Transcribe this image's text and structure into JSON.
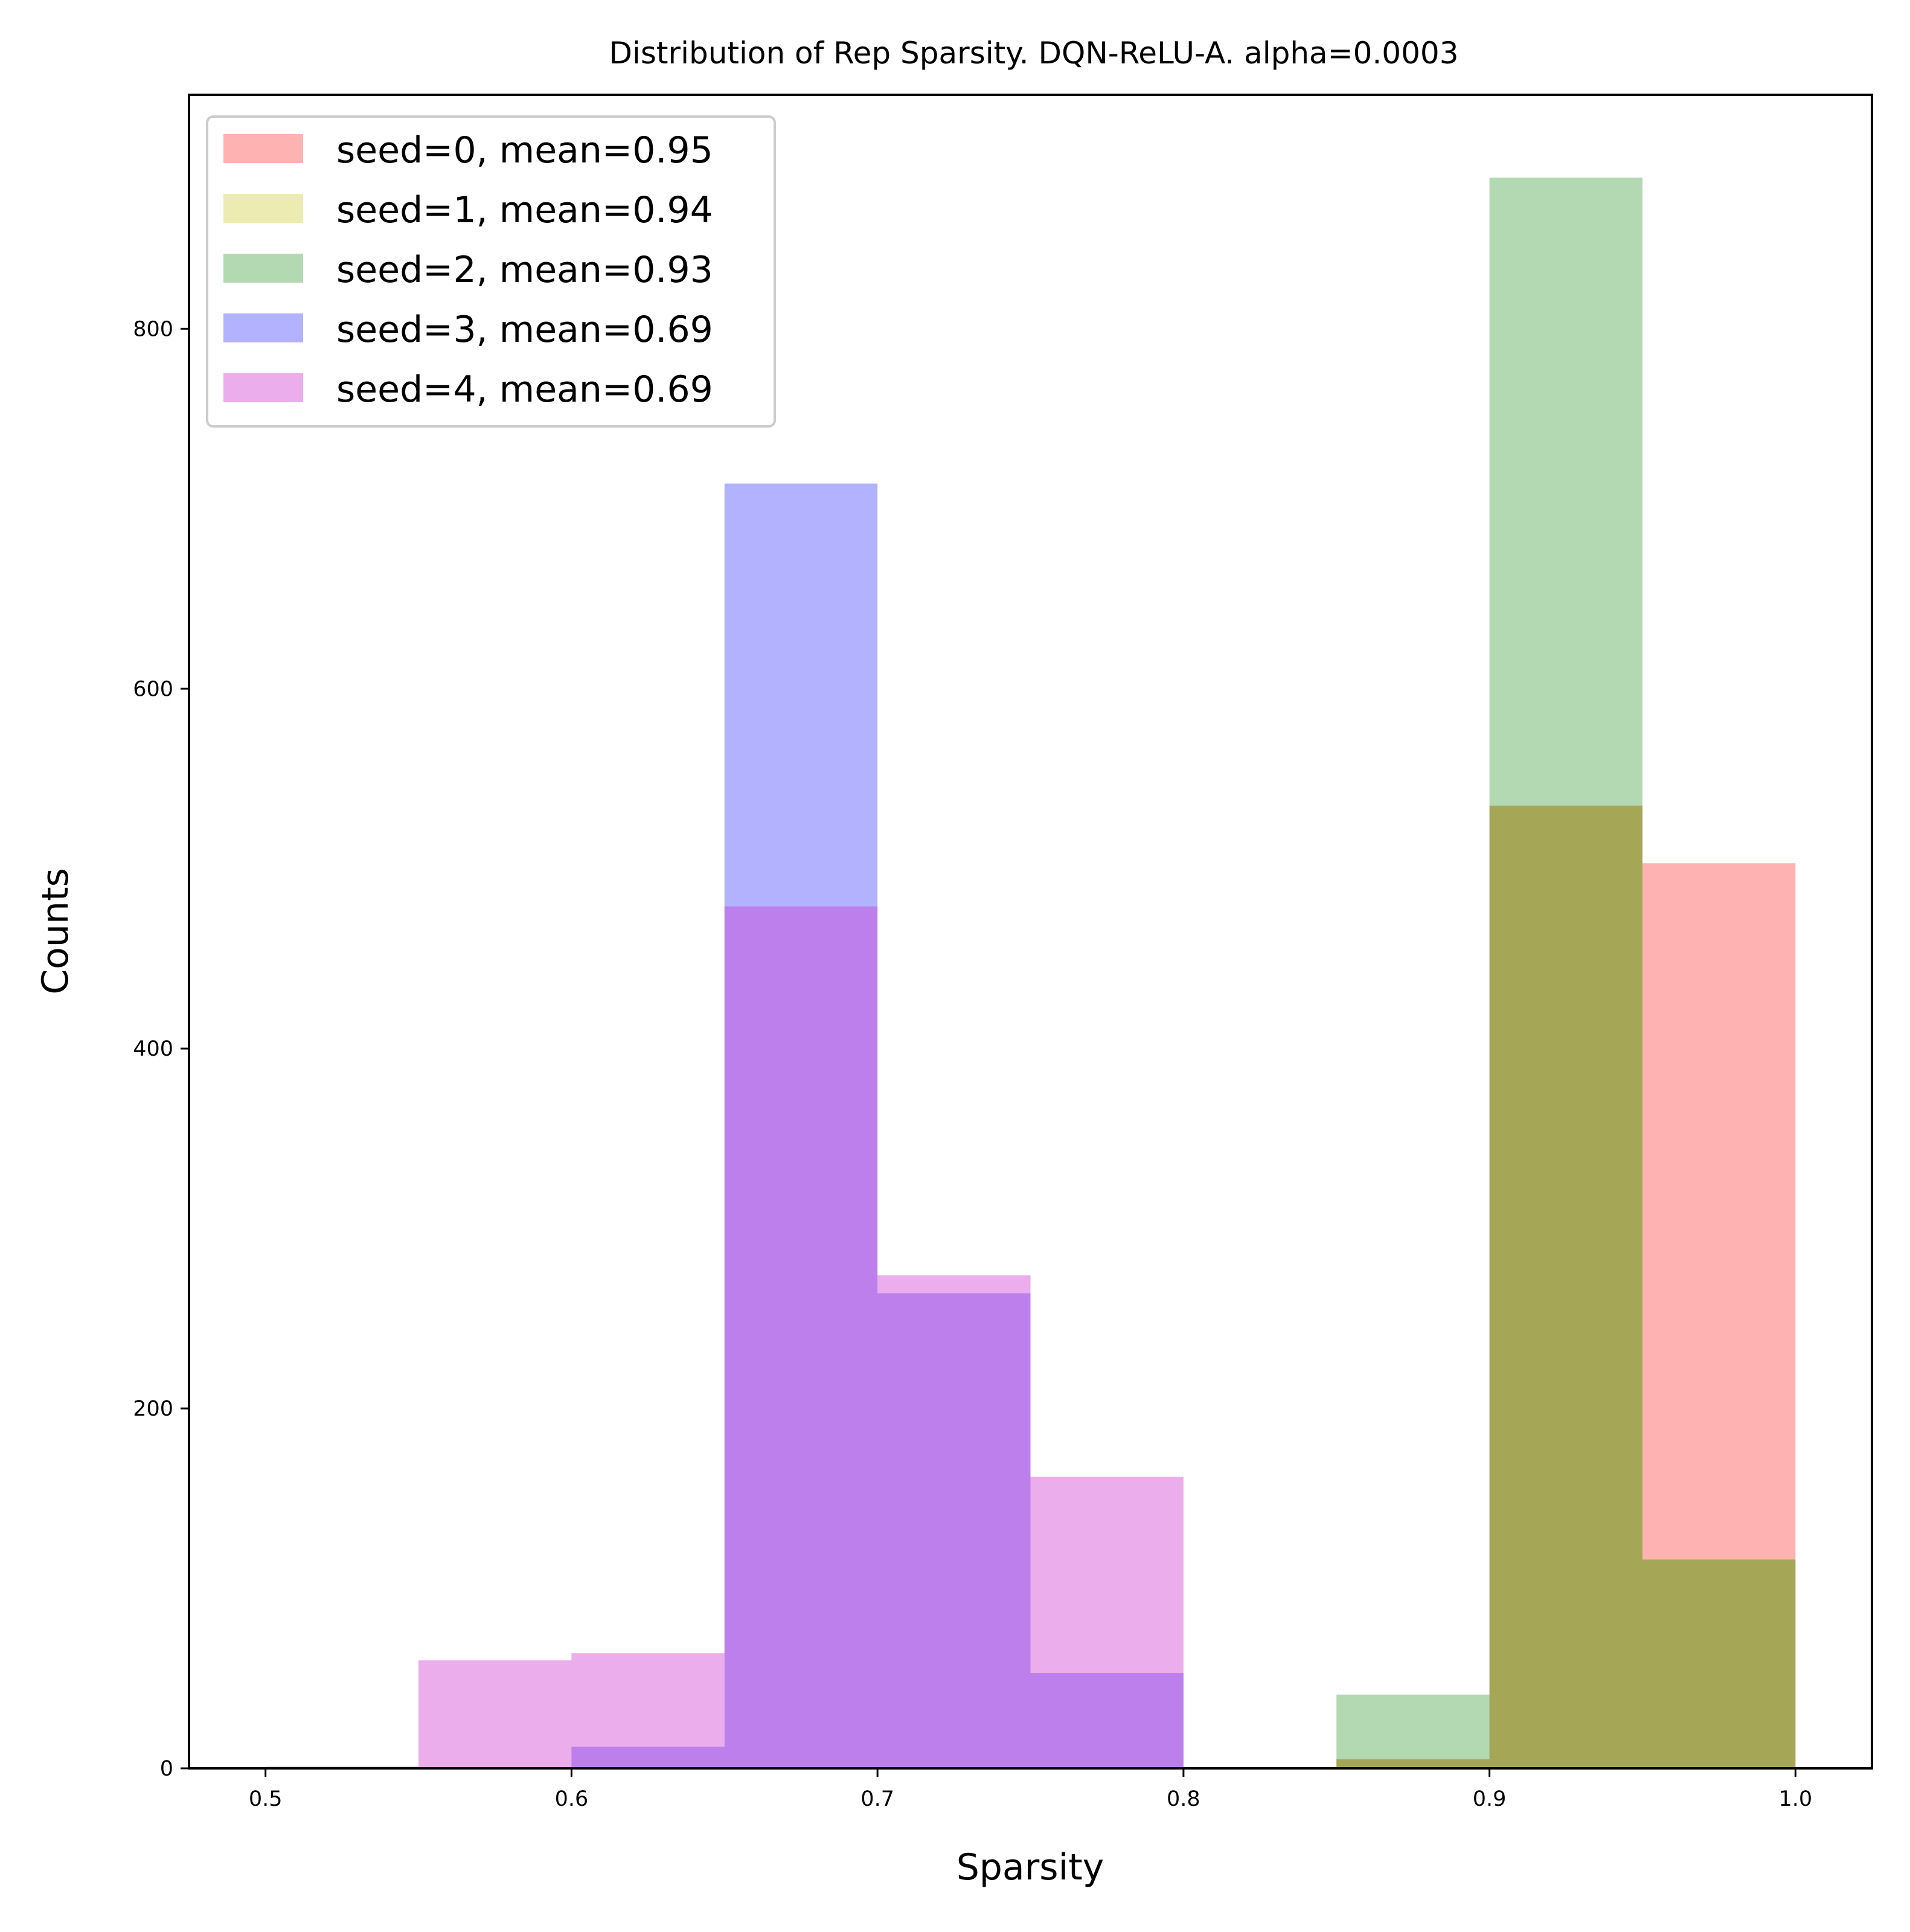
{
  "chart_data": {
    "type": "bar",
    "title": "Distribution of Rep Sparsity. DQN-ReLU-A. alpha=0.0003",
    "xlabel": "Sparsity",
    "ylabel": "Counts",
    "xlim": [
      0.475,
      1.025
    ],
    "ylim": [
      0,
      930
    ],
    "xticks": [
      0.5,
      0.6,
      0.7,
      0.8,
      0.9,
      1.0
    ],
    "xtick_labels": [
      "0.5",
      "0.6",
      "0.7",
      "0.8",
      "0.9",
      "1.0"
    ],
    "yticks": [
      0,
      200,
      400,
      600,
      800
    ],
    "ytick_labels": [
      "0",
      "200",
      "400",
      "600",
      "800"
    ],
    "bin_edges": [
      0.5,
      0.55,
      0.6,
      0.65,
      0.7,
      0.75,
      0.8,
      0.85,
      0.9,
      0.95,
      1.0
    ],
    "grid": false,
    "legend_position": "upper-left",
    "series": [
      {
        "name": "seed=0, mean=0.95",
        "color": "#ff0000",
        "alpha": 0.3,
        "values": [
          0,
          0,
          0,
          0,
          0,
          0,
          0,
          5,
          535,
          503
        ]
      },
      {
        "name": "seed=1, mean=0.94",
        "color": "#bfbf00",
        "alpha": 0.3,
        "values": [
          0,
          0,
          0,
          0,
          0,
          0,
          0,
          5,
          535,
          116
        ]
      },
      {
        "name": "seed=2, mean=0.93",
        "color": "#008000",
        "alpha": 0.3,
        "values": [
          0,
          0,
          0,
          0,
          0,
          0,
          0,
          41,
          884,
          116
        ]
      },
      {
        "name": "seed=3, mean=0.69",
        "color": "#0000ff",
        "alpha": 0.3,
        "values": [
          0,
          0,
          12,
          714,
          264,
          53,
          0,
          0,
          0,
          0
        ]
      },
      {
        "name": "seed=4, mean=0.69",
        "color": "#cc33cc",
        "alpha": 0.4,
        "values": [
          1,
          60,
          64,
          479,
          274,
          162,
          0,
          0,
          0,
          0
        ]
      }
    ]
  }
}
